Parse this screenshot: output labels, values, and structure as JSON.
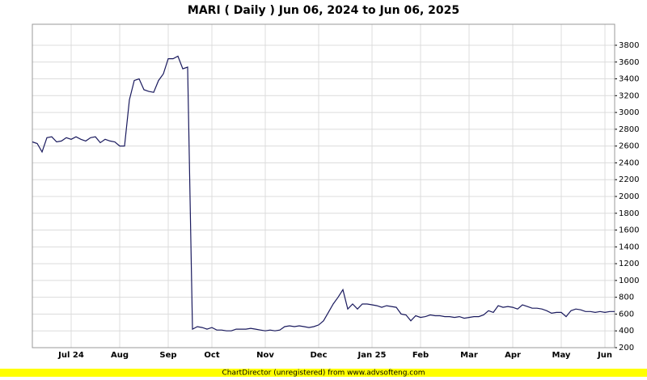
{
  "chart_data": {
    "type": "line",
    "title": "MARI ( Daily ) Jun 06, 2024 to Jun 06, 2025",
    "footer": "ChartDirector (unregistered) from www.advsofteng.com",
    "categories": [
      null,
      null,
      null,
      null,
      null,
      null,
      null,
      null,
      "Jul 24",
      null,
      null,
      null,
      null,
      null,
      null,
      null,
      null,
      null,
      "Aug",
      null,
      null,
      null,
      null,
      null,
      null,
      null,
      null,
      null,
      "Sep",
      null,
      null,
      null,
      null,
      null,
      null,
      null,
      null,
      "Oct",
      null,
      null,
      null,
      null,
      null,
      null,
      null,
      null,
      null,
      null,
      "Nov",
      null,
      null,
      null,
      null,
      null,
      null,
      null,
      null,
      null,
      null,
      "Dec",
      null,
      null,
      null,
      null,
      null,
      null,
      null,
      null,
      null,
      null,
      "Jan 25",
      null,
      null,
      null,
      null,
      null,
      null,
      null,
      null,
      null,
      "Feb",
      null,
      null,
      null,
      null,
      null,
      null,
      null,
      null,
      null,
      "Mar",
      null,
      null,
      null,
      null,
      null,
      null,
      null,
      null,
      "Apr",
      null,
      null,
      null,
      null,
      null,
      null,
      null,
      null,
      null,
      "May",
      null,
      null,
      null,
      null,
      null,
      null,
      null,
      null,
      "Jun",
      null,
      null
    ],
    "series": [
      {
        "name": "MARI",
        "color": "#1a1a5e",
        "values": [
          2650,
          2630,
          2530,
          2700,
          2710,
          2650,
          2660,
          2700,
          2680,
          2710,
          2680,
          2660,
          2700,
          2710,
          2640,
          2680,
          2660,
          2650,
          2600,
          2600,
          3150,
          3380,
          3400,
          3270,
          3250,
          3240,
          3380,
          3460,
          3640,
          3640,
          3670,
          3520,
          3540,
          420,
          450,
          440,
          420,
          440,
          410,
          410,
          400,
          400,
          420,
          420,
          420,
          430,
          420,
          410,
          400,
          410,
          400,
          410,
          450,
          460,
          450,
          460,
          450,
          440,
          450,
          470,
          520,
          620,
          720,
          800,
          890,
          660,
          720,
          660,
          720,
          720,
          710,
          700,
          680,
          700,
          690,
          680,
          600,
          590,
          520,
          580,
          560,
          570,
          590,
          580,
          580,
          570,
          570,
          560,
          570,
          550,
          560,
          570,
          570,
          590,
          640,
          620,
          700,
          680,
          690,
          680,
          660,
          710,
          690,
          670,
          670,
          660,
          640,
          610,
          620,
          620,
          570,
          640,
          660,
          650,
          630,
          630,
          620,
          630,
          620,
          630,
          630
        ]
      }
    ],
    "ylim": [
      200,
      4050
    ],
    "yticks": [
      200,
      400,
      600,
      800,
      1000,
      1200,
      1400,
      1600,
      1800,
      2000,
      2200,
      2400,
      2600,
      2800,
      3000,
      3200,
      3400,
      3600,
      3800
    ],
    "grid": true
  }
}
